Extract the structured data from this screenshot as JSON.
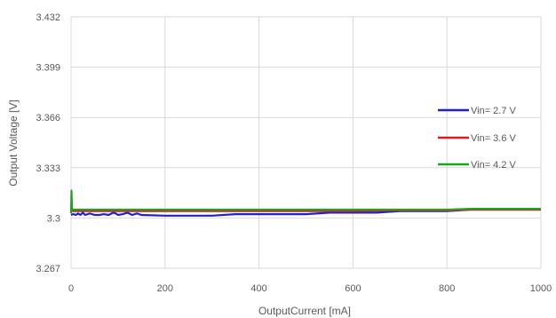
{
  "chart_data": {
    "type": "line",
    "title": "",
    "xlabel": "OutputCurrent [mA]",
    "ylabel": "Output Voltage [V]",
    "xlim": [
      0,
      1000
    ],
    "ylim": [
      3.267,
      3.432
    ],
    "x_ticks": [
      "0",
      "200",
      "400",
      "600",
      "800",
      "1000"
    ],
    "y_ticks": [
      "3.432",
      "3.399",
      "3.366",
      "3.333",
      "3.3",
      "3.267"
    ],
    "grid": true,
    "legend_position": "right",
    "series": [
      {
        "name": "Vin= 2.7 V",
        "color": "#1f1fd6",
        "x": [
          0,
          5,
          10,
          15,
          20,
          25,
          30,
          40,
          50,
          60,
          70,
          80,
          90,
          95,
          100,
          110,
          120,
          130,
          140,
          150,
          200,
          300,
          350,
          400,
          500,
          550,
          650,
          700,
          800,
          850,
          1000
        ],
        "y": [
          3.302,
          3.3025,
          3.302,
          3.303,
          3.302,
          3.3035,
          3.302,
          3.303,
          3.302,
          3.302,
          3.3025,
          3.302,
          3.3035,
          3.303,
          3.302,
          3.3025,
          3.3035,
          3.302,
          3.303,
          3.302,
          3.3015,
          3.3015,
          3.3025,
          3.3025,
          3.3025,
          3.3035,
          3.3035,
          3.3045,
          3.3045,
          3.3055,
          3.3055
        ]
      },
      {
        "name": "Vin= 3.6 V",
        "color": "#d62020",
        "x": [
          0,
          100,
          200,
          300,
          400,
          500,
          600,
          700,
          800,
          850,
          1000
        ],
        "y": [
          3.3045,
          3.3045,
          3.3045,
          3.3045,
          3.3045,
          3.3045,
          3.3045,
          3.305,
          3.305,
          3.3055,
          3.3055
        ]
      },
      {
        "name": "Vin= 4.2 V",
        "color": "#1fa31f",
        "x": [
          0,
          1,
          2,
          5,
          100,
          200,
          300,
          400,
          500,
          600,
          700,
          800,
          850,
          1000
        ],
        "y": [
          3.303,
          3.318,
          3.306,
          3.3055,
          3.3055,
          3.3055,
          3.3055,
          3.3055,
          3.3055,
          3.3055,
          3.3055,
          3.3055,
          3.306,
          3.306
        ]
      }
    ]
  }
}
